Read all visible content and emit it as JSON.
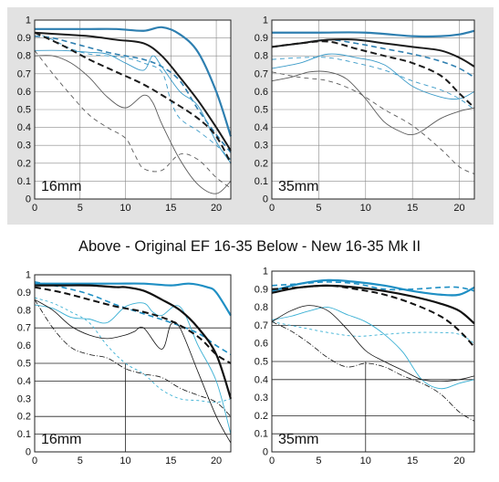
{
  "caption": "Above - Original EF 16-35  Below - New 16-35 Mk II",
  "colors": {
    "panel_bg": "#e2e2e2",
    "blue": "#2e7fb0",
    "blue_light": "#3ab0d4",
    "black": "#1b1b1b",
    "gray": "#5a5a5a"
  },
  "chart_data": [
    {
      "type": "line",
      "label": "16mm",
      "group": "Original EF 16-35",
      "xlim": [
        0,
        21.6
      ],
      "ylim": [
        0,
        1
      ],
      "xticks": [
        0,
        5,
        10,
        15,
        20
      ],
      "yticks": [
        0,
        0.1,
        0.2,
        0.3,
        0.4,
        0.5,
        0.6,
        0.7,
        0.8,
        0.9,
        1
      ],
      "grid": true,
      "series": [
        {
          "color": "#2e7fb0",
          "width": 2.2,
          "dash": "",
          "x": [
            0,
            3,
            6,
            9,
            12,
            14,
            16,
            18,
            20,
            21.6
          ],
          "y": [
            0.95,
            0.95,
            0.95,
            0.95,
            0.94,
            0.96,
            0.92,
            0.82,
            0.6,
            0.35
          ]
        },
        {
          "color": "#2e7fb0",
          "width": 1.6,
          "dash": "6,4",
          "x": [
            0,
            2,
            5,
            8,
            10,
            12,
            14,
            16,
            18,
            20,
            21.6
          ],
          "y": [
            0.91,
            0.9,
            0.86,
            0.82,
            0.8,
            0.78,
            0.74,
            0.66,
            0.5,
            0.36,
            0.26
          ]
        },
        {
          "color": "#3a9ac8",
          "width": 0.9,
          "dash": "",
          "x": [
            0,
            3,
            6,
            8,
            10,
            12,
            13,
            14,
            16,
            18,
            20,
            21.6
          ],
          "y": [
            0.83,
            0.83,
            0.82,
            0.81,
            0.76,
            0.72,
            0.8,
            0.74,
            0.6,
            0.52,
            0.32,
            0.2
          ]
        },
        {
          "color": "#3a9ac8",
          "width": 0.9,
          "dash": "5,4",
          "x": [
            0,
            2,
            4,
            6,
            8,
            10,
            12,
            14,
            15,
            16,
            18,
            20,
            21.6
          ],
          "y": [
            0.93,
            0.89,
            0.84,
            0.81,
            0.8,
            0.79,
            0.76,
            0.71,
            0.55,
            0.45,
            0.38,
            0.3,
            0.22
          ]
        },
        {
          "color": "#1b1b1b",
          "width": 2.0,
          "dash": "",
          "x": [
            0,
            3,
            6,
            9,
            12,
            14,
            16,
            18,
            20,
            21.6
          ],
          "y": [
            0.93,
            0.92,
            0.91,
            0.89,
            0.87,
            0.8,
            0.68,
            0.55,
            0.4,
            0.27
          ]
        },
        {
          "color": "#1b1b1b",
          "width": 2.0,
          "dash": "7,4",
          "x": [
            0,
            3,
            6,
            9,
            12,
            15,
            18,
            20,
            21.6
          ],
          "y": [
            0.93,
            0.86,
            0.78,
            0.71,
            0.64,
            0.55,
            0.45,
            0.35,
            0.2
          ]
        },
        {
          "color": "#5a5a5a",
          "width": 0.9,
          "dash": "",
          "x": [
            0,
            2,
            4,
            6,
            8,
            10,
            12,
            13,
            14,
            16,
            18,
            20,
            21.6
          ],
          "y": [
            0.8,
            0.8,
            0.76,
            0.68,
            0.57,
            0.51,
            0.58,
            0.54,
            0.42,
            0.22,
            0.08,
            0.03,
            0.1
          ]
        },
        {
          "color": "#5a5a5a",
          "width": 0.9,
          "dash": "5,4",
          "x": [
            0,
            2,
            4,
            6,
            8,
            10,
            11,
            12,
            14,
            16,
            18,
            20,
            21.6
          ],
          "y": [
            0.83,
            0.7,
            0.58,
            0.47,
            0.4,
            0.34,
            0.25,
            0.17,
            0.16,
            0.25,
            0.22,
            0.12,
            0.06
          ]
        }
      ]
    },
    {
      "type": "line",
      "label": "35mm",
      "group": "Original EF 16-35",
      "xlim": [
        0,
        21.6
      ],
      "ylim": [
        0,
        1
      ],
      "xticks": [
        0,
        5,
        10,
        15,
        20
      ],
      "yticks": [
        0,
        0.1,
        0.2,
        0.3,
        0.4,
        0.5,
        0.6,
        0.7,
        0.8,
        0.9,
        1
      ],
      "grid": true,
      "series": [
        {
          "color": "#2e7fb0",
          "width": 2.2,
          "dash": "",
          "x": [
            0,
            5,
            10,
            15,
            18,
            20,
            21.6
          ],
          "y": [
            0.93,
            0.93,
            0.93,
            0.91,
            0.91,
            0.92,
            0.94
          ]
        },
        {
          "color": "#2e7fb0",
          "width": 1.6,
          "dash": "6,4",
          "x": [
            0,
            3,
            6,
            9,
            12,
            15,
            18,
            20,
            21.6
          ],
          "y": [
            0.85,
            0.87,
            0.89,
            0.87,
            0.84,
            0.81,
            0.77,
            0.73,
            0.68
          ]
        },
        {
          "color": "#3a9ac8",
          "width": 0.9,
          "dash": "",
          "x": [
            0,
            3,
            6,
            9,
            12,
            15,
            18,
            20,
            21.6
          ],
          "y": [
            0.73,
            0.76,
            0.81,
            0.79,
            0.75,
            0.63,
            0.57,
            0.56,
            0.6
          ]
        },
        {
          "color": "#3a9ac8",
          "width": 0.9,
          "dash": "5,4",
          "x": [
            0,
            3,
            6,
            9,
            12,
            15,
            18,
            20,
            21.6
          ],
          "y": [
            0.78,
            0.79,
            0.79,
            0.76,
            0.72,
            0.66,
            0.61,
            0.56,
            0.5
          ]
        },
        {
          "color": "#1b1b1b",
          "width": 2.0,
          "dash": "",
          "x": [
            0,
            3,
            6,
            9,
            12,
            15,
            18,
            20,
            21.6
          ],
          "y": [
            0.85,
            0.87,
            0.89,
            0.89,
            0.87,
            0.85,
            0.83,
            0.79,
            0.74
          ]
        },
        {
          "color": "#1b1b1b",
          "width": 2.0,
          "dash": "7,4",
          "x": [
            0,
            3,
            6,
            9,
            12,
            15,
            18,
            20,
            21.6
          ],
          "y": [
            0.85,
            0.87,
            0.88,
            0.84,
            0.8,
            0.76,
            0.69,
            0.59,
            0.51
          ]
        },
        {
          "color": "#5a5a5a",
          "width": 0.9,
          "dash": "",
          "x": [
            0,
            2,
            4,
            6,
            8,
            10,
            12,
            14,
            15,
            16,
            18,
            20,
            21.6
          ],
          "y": [
            0.66,
            0.68,
            0.71,
            0.71,
            0.67,
            0.56,
            0.43,
            0.37,
            0.36,
            0.38,
            0.45,
            0.49,
            0.51
          ]
        },
        {
          "color": "#5a5a5a",
          "width": 0.9,
          "dash": "5,4",
          "x": [
            0,
            3,
            6,
            9,
            12,
            15,
            18,
            20,
            21.6
          ],
          "y": [
            0.71,
            0.68,
            0.66,
            0.6,
            0.5,
            0.41,
            0.28,
            0.18,
            0.14
          ]
        }
      ]
    },
    {
      "type": "line",
      "label": "16mm",
      "group": "New 16-35 Mk II",
      "xlim": [
        0,
        21.6
      ],
      "ylim": [
        0,
        1
      ],
      "xticks": [
        0,
        5,
        10,
        15,
        20
      ],
      "yticks": [
        0,
        0.1,
        0.2,
        0.3,
        0.4,
        0.5,
        0.6,
        0.7,
        0.8,
        0.9,
        1
      ],
      "grid": "partial",
      "series": [
        {
          "color": "#1f8fc4",
          "width": 2.2,
          "dash": "",
          "x": [
            0,
            3,
            6,
            9,
            12,
            15,
            17,
            19,
            20,
            21.6
          ],
          "y": [
            0.95,
            0.95,
            0.95,
            0.95,
            0.95,
            0.94,
            0.95,
            0.93,
            0.9,
            0.77
          ]
        },
        {
          "color": "#1f8fc4",
          "width": 1.6,
          "dash": "6,4",
          "x": [
            0,
            3,
            6,
            9,
            12,
            15,
            18,
            20,
            21.6
          ],
          "y": [
            0.96,
            0.93,
            0.89,
            0.83,
            0.78,
            0.73,
            0.67,
            0.6,
            0.55
          ]
        },
        {
          "color": "#3ab0d4",
          "width": 0.9,
          "dash": "",
          "x": [
            0,
            2,
            4,
            6,
            8,
            10,
            12,
            13,
            14,
            16,
            18,
            20,
            21.6
          ],
          "y": [
            0.83,
            0.81,
            0.76,
            0.75,
            0.73,
            0.82,
            0.84,
            0.79,
            0.77,
            0.82,
            0.6,
            0.4,
            0.1
          ]
        },
        {
          "color": "#3ab0d4",
          "width": 0.9,
          "dash": "3,3",
          "x": [
            0,
            2,
            4,
            6,
            8,
            10,
            12,
            14,
            16,
            18,
            20,
            21.6
          ],
          "y": [
            0.87,
            0.84,
            0.79,
            0.73,
            0.6,
            0.5,
            0.44,
            0.35,
            0.3,
            0.29,
            0.28,
            0.3
          ]
        },
        {
          "color": "#111111",
          "width": 2.2,
          "dash": "",
          "x": [
            0,
            3,
            6,
            9,
            10,
            12,
            14,
            16,
            18,
            20,
            21.6
          ],
          "y": [
            0.94,
            0.94,
            0.94,
            0.93,
            0.93,
            0.91,
            0.86,
            0.8,
            0.7,
            0.55,
            0.3
          ]
        },
        {
          "color": "#111111",
          "width": 2.0,
          "dash": "7,4",
          "x": [
            0,
            3,
            6,
            9,
            12,
            15,
            18,
            20,
            21.6
          ],
          "y": [
            0.93,
            0.9,
            0.86,
            0.82,
            0.79,
            0.74,
            0.65,
            0.55,
            0.5
          ]
        },
        {
          "color": "#111111",
          "width": 0.8,
          "dash": "",
          "x": [
            0,
            2,
            4,
            6,
            8,
            10,
            11,
            12,
            14,
            15,
            16,
            18,
            20,
            21.6
          ],
          "y": [
            0.86,
            0.8,
            0.71,
            0.66,
            0.64,
            0.66,
            0.68,
            0.7,
            0.58,
            0.72,
            0.7,
            0.45,
            0.2,
            0.05
          ]
        },
        {
          "color": "#111111",
          "width": 0.8,
          "dash": "6,2,1,2",
          "x": [
            0,
            2,
            4,
            6,
            8,
            10,
            12,
            14,
            16,
            18,
            20,
            21.6
          ],
          "y": [
            0.86,
            0.7,
            0.59,
            0.55,
            0.53,
            0.47,
            0.44,
            0.42,
            0.36,
            0.32,
            0.28,
            0.2
          ]
        }
      ]
    },
    {
      "type": "line",
      "label": "35mm",
      "group": "New 16-35 Mk II",
      "xlim": [
        0,
        21.6
      ],
      "ylim": [
        0,
        1
      ],
      "xticks": [
        0,
        5,
        10,
        15,
        20
      ],
      "yticks": [
        0,
        0.1,
        0.2,
        0.3,
        0.4,
        0.5,
        0.6,
        0.7,
        0.8,
        0.9,
        1
      ],
      "grid": "partial",
      "series": [
        {
          "color": "#1f8fc4",
          "width": 2.2,
          "dash": "",
          "x": [
            0,
            3,
            6,
            9,
            12,
            15,
            18,
            20,
            21.6
          ],
          "y": [
            0.89,
            0.93,
            0.95,
            0.94,
            0.92,
            0.89,
            0.87,
            0.87,
            0.91
          ]
        },
        {
          "color": "#1f8fc4",
          "width": 1.6,
          "dash": "6,4",
          "x": [
            0,
            3,
            6,
            9,
            12,
            15,
            18,
            20,
            21.6
          ],
          "y": [
            0.92,
            0.93,
            0.94,
            0.93,
            0.9,
            0.9,
            0.91,
            0.91,
            0.89
          ]
        },
        {
          "color": "#3ab0d4",
          "width": 0.9,
          "dash": "",
          "x": [
            0,
            2,
            4,
            6,
            8,
            10,
            12,
            14,
            16,
            18,
            20,
            21.6
          ],
          "y": [
            0.73,
            0.75,
            0.78,
            0.8,
            0.76,
            0.72,
            0.65,
            0.55,
            0.4,
            0.35,
            0.38,
            0.4
          ]
        },
        {
          "color": "#3ab0d4",
          "width": 0.9,
          "dash": "3,3",
          "x": [
            0,
            3,
            6,
            9,
            12,
            15,
            18,
            20,
            21.6
          ],
          "y": [
            0.72,
            0.69,
            0.66,
            0.64,
            0.65,
            0.66,
            0.66,
            0.65,
            0.6
          ]
        },
        {
          "color": "#111111",
          "width": 2.2,
          "dash": "",
          "x": [
            0,
            3,
            6,
            9,
            12,
            15,
            18,
            20,
            21.6
          ],
          "y": [
            0.88,
            0.91,
            0.92,
            0.91,
            0.89,
            0.86,
            0.82,
            0.78,
            0.71
          ]
        },
        {
          "color": "#111111",
          "width": 2.0,
          "dash": "7,4",
          "x": [
            0,
            3,
            6,
            9,
            12,
            15,
            18,
            20,
            21.6
          ],
          "y": [
            0.9,
            0.91,
            0.92,
            0.9,
            0.87,
            0.82,
            0.75,
            0.67,
            0.58
          ]
        },
        {
          "color": "#111111",
          "width": 0.8,
          "dash": "",
          "x": [
            0,
            2,
            4,
            6,
            8,
            10,
            12,
            14,
            16,
            18,
            20,
            21.6
          ],
          "y": [
            0.72,
            0.78,
            0.81,
            0.78,
            0.68,
            0.56,
            0.5,
            0.45,
            0.4,
            0.39,
            0.4,
            0.42
          ]
        },
        {
          "color": "#111111",
          "width": 0.8,
          "dash": "6,2,1,2",
          "x": [
            0,
            2,
            4,
            6,
            8,
            10,
            12,
            14,
            16,
            18,
            20,
            21.6
          ],
          "y": [
            0.72,
            0.67,
            0.6,
            0.52,
            0.47,
            0.49,
            0.47,
            0.42,
            0.38,
            0.32,
            0.22,
            0.17
          ]
        }
      ]
    }
  ]
}
